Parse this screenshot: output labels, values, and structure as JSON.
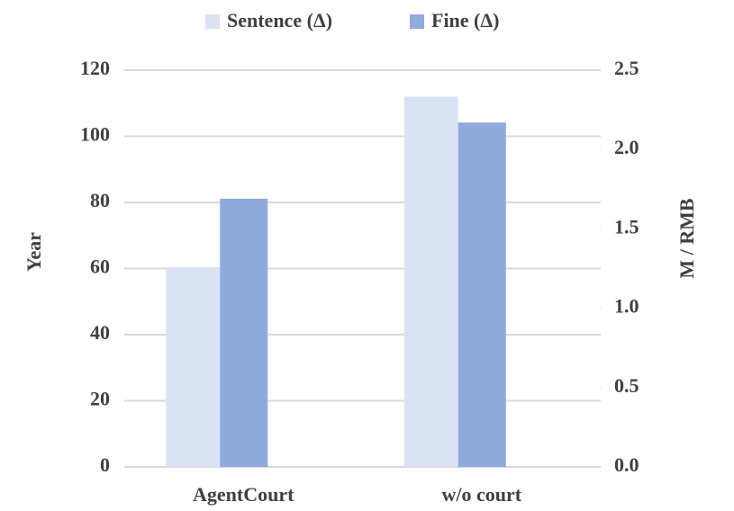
{
  "chart_data": {
    "type": "bar",
    "categories": [
      "AgentCourt",
      "w/o court"
    ],
    "series": [
      {
        "name": "Sentence (Δ)",
        "color": "#dae3f3",
        "values": [
          60.4,
          112
        ]
      },
      {
        "name": "Fine (Δ)",
        "color": "#8faadc",
        "axis": "y2",
        "values": [
          1.69,
          2.17
        ]
      }
    ],
    "y_label": "Year",
    "y2_label": "M / RMB",
    "ylim": [
      0,
      120
    ],
    "yticks": [
      0,
      20,
      40,
      60,
      80,
      100,
      120
    ],
    "y2lim": [
      0,
      2.5
    ],
    "y2ticks": [
      {
        "value": 0,
        "label": "0.0"
      },
      0.5,
      {
        "value": 1,
        "label": "1.0"
      },
      1.5,
      {
        "value": 2,
        "label": "2.0"
      },
      2.5
    ],
    "grid": true,
    "legend": "top"
  }
}
